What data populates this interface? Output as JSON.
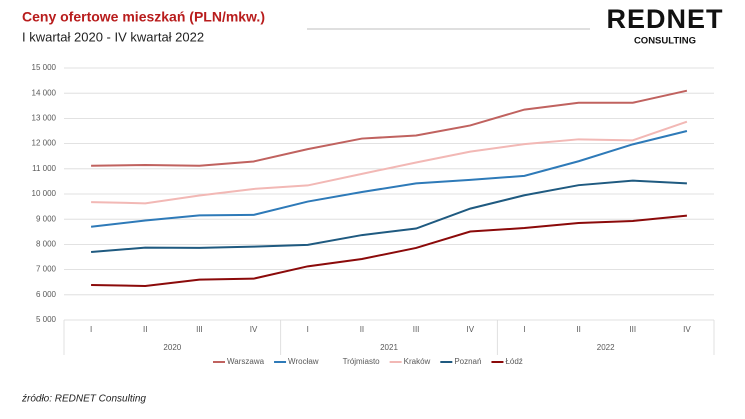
{
  "title": "Ceny ofertowe mieszkań (PLN/mkw.)",
  "subtitle": "I kwartał 2020 - IV kwartał 2022",
  "logo": {
    "name": "REDNET",
    "tagline": "CONSULTING"
  },
  "source": "źródło: REDNET Consulting",
  "chart_data": {
    "type": "line",
    "categories": [
      "I",
      "II",
      "III",
      "IV",
      "I",
      "II",
      "III",
      "IV",
      "I",
      "II",
      "III",
      "IV"
    ],
    "groups": [
      "2020",
      "2021",
      "2022"
    ],
    "ylim": [
      5000,
      15000
    ],
    "yticks": [
      {
        "value": 5000,
        "label": "5 000"
      },
      {
        "value": 6000,
        "label": "6 000"
      },
      {
        "value": 7000,
        "label": "7 000"
      },
      {
        "value": 8000,
        "label": "8 000"
      },
      {
        "value": 9000,
        "label": "9 000"
      },
      {
        "value": 10000,
        "label": "10 000"
      },
      {
        "value": 11000,
        "label": "11 000"
      },
      {
        "value": 12000,
        "label": "12 000"
      },
      {
        "value": 13000,
        "label": "13 000"
      },
      {
        "value": 14000,
        "label": "14 000"
      },
      {
        "value": 15000,
        "label": "15 000"
      }
    ],
    "grid": true,
    "legend": "bottom",
    "series": [
      {
        "name": "Warszawa",
        "color": "#c0625f",
        "values": [
          11120,
          11150,
          11120,
          11290,
          11780,
          12200,
          12320,
          12720,
          13350,
          13620,
          13620,
          14100
        ]
      },
      {
        "name": "Wrocław",
        "color": "#2e7ab8",
        "values": [
          8700,
          8950,
          9150,
          9170,
          9700,
          10080,
          10420,
          10560,
          10720,
          11300,
          11970,
          12500
        ]
      },
      {
        "name": "Trójmiasto",
        "color": "#ffffff",
        "values": [
          null,
          null,
          null,
          null,
          null,
          null,
          null,
          null,
          null,
          null,
          null,
          null
        ]
      },
      {
        "name": "Kraków",
        "color": "#f2b8b5",
        "values": [
          9680,
          9630,
          9940,
          10200,
          10340,
          10800,
          11250,
          11680,
          11980,
          12170,
          12130,
          12870
        ]
      },
      {
        "name": "Poznań",
        "color": "#1f5a80",
        "values": [
          7700,
          7870,
          7860,
          7910,
          7980,
          8370,
          8630,
          9420,
          9950,
          10350,
          10530,
          10420
        ]
      },
      {
        "name": "Łódź",
        "color": "#8b0a0a",
        "values": [
          6390,
          6350,
          6600,
          6640,
          7130,
          7420,
          7860,
          8510,
          8650,
          8850,
          8930,
          9140
        ]
      }
    ]
  }
}
